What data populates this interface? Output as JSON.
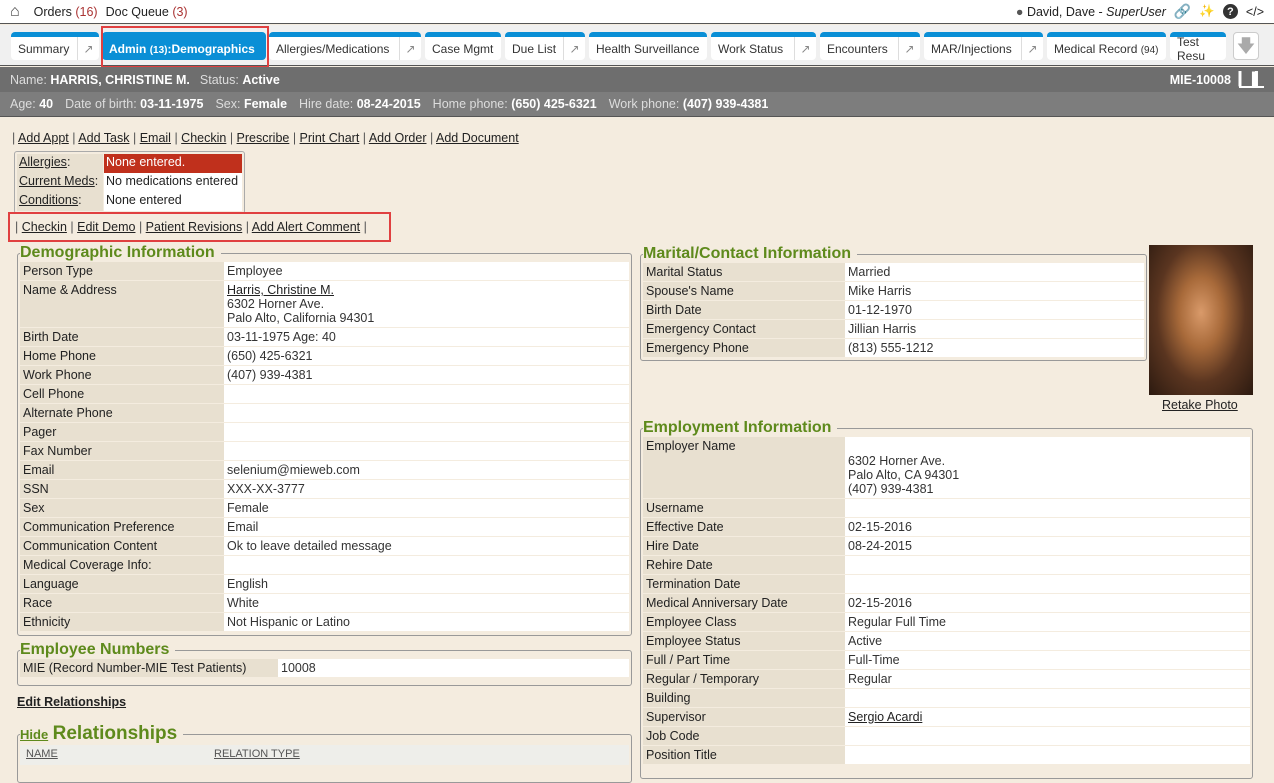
{
  "topbar": {
    "orders_label": "Orders",
    "orders_count": "(16)",
    "docq_label": "Doc Queue",
    "docq_count": "(3)",
    "user": "David, Dave",
    "role": "SuperUser",
    "sep": " - "
  },
  "tabs": [
    {
      "label": "Summary",
      "pop": true
    },
    {
      "label": "Admin",
      "count": "(13)",
      "suffix": ":Demographics",
      "active": true
    },
    {
      "label": "Allergies/Medications",
      "pop": true
    },
    {
      "label": "Case Mgmt"
    },
    {
      "label": "Due List",
      "pop": true
    },
    {
      "label": "Health Surveillance"
    },
    {
      "label": "Work Status",
      "pop": true
    },
    {
      "label": "Encounters",
      "pop": true
    },
    {
      "label": "MAR/Injections",
      "pop": true
    },
    {
      "label": "Medical Record",
      "count": "(94)"
    },
    {
      "label": "Test Resu"
    }
  ],
  "patient": {
    "name_label": "Name:",
    "name": "HARRIS, CHRISTINE M.",
    "status_label": "Status:",
    "status": "Active",
    "id": "MIE-10008",
    "info": [
      {
        "k": "Age:",
        "v": "40"
      },
      {
        "k": "Date of birth:",
        "v": "03-11-1975"
      },
      {
        "k": "Sex:",
        "v": "Female"
      },
      {
        "k": "Hire date:",
        "v": "08-24-2015"
      },
      {
        "k": "Home phone:",
        "v": "(650) 425-6321"
      },
      {
        "k": "Work phone:",
        "v": "(407) 939-4381"
      }
    ]
  },
  "actions": [
    "Add Appt",
    "Add Task",
    "Email",
    "Checkin",
    "Prescribe",
    "Print Chart",
    "Add Order",
    "Add Document"
  ],
  "alerts": [
    {
      "k": "Allergies",
      "v": "None entered.",
      "red": true
    },
    {
      "k": "Current Meds",
      "v": "No medications entered"
    },
    {
      "k": "Conditions",
      "v": "None entered"
    }
  ],
  "actions2": [
    "Checkin",
    "Edit Demo",
    "Patient Revisions",
    "Add Alert Comment"
  ],
  "demographic": {
    "title": "Demographic Information",
    "rows": [
      {
        "k": "Person Type",
        "v": "Employee"
      },
      {
        "k": "Name & Address",
        "v": "Harris, Christine M.",
        "v2": "6302 Horner Ave.",
        "v3": "Palo Alto, California 94301",
        "link": true
      },
      {
        "k": "Birth Date",
        "v": "03-11-1975 Age: 40"
      },
      {
        "k": "Home Phone",
        "v": "(650) 425-6321"
      },
      {
        "k": "Work Phone",
        "v": "(407) 939-4381"
      },
      {
        "k": "Cell Phone",
        "v": ""
      },
      {
        "k": "Alternate Phone",
        "v": ""
      },
      {
        "k": "Pager",
        "v": ""
      },
      {
        "k": "Fax Number",
        "v": ""
      },
      {
        "k": "Email",
        "v": "selenium@mieweb.com"
      },
      {
        "k": "SSN",
        "v": "XXX-XX-3777"
      },
      {
        "k": "Sex",
        "v": "Female"
      },
      {
        "k": "Communication Preference",
        "v": "Email"
      },
      {
        "k": "Communication Content",
        "v": "Ok to leave detailed message"
      },
      {
        "k": "Medical Coverage Info:",
        "v": ""
      },
      {
        "k": "Language",
        "v": "English"
      },
      {
        "k": "Race",
        "v": "White"
      },
      {
        "k": "Ethnicity",
        "v": "Not Hispanic or Latino"
      }
    ]
  },
  "employee_numbers": {
    "title": "Employee Numbers",
    "rows": [
      {
        "k": "MIE (Record Number-MIE Test Patients)",
        "v": "10008"
      }
    ]
  },
  "edit_relationships": "Edit Relationships",
  "relationships": {
    "hide": "Hide",
    "title": "Relationships",
    "columns": [
      "NAME",
      "RELATION TYPE"
    ]
  },
  "marital": {
    "title": "Marital/Contact Information",
    "rows": [
      {
        "k": "Marital Status",
        "v": "Married"
      },
      {
        "k": "Spouse's Name",
        "v": "Mike Harris"
      },
      {
        "k": "Birth Date",
        "v": "01-12-1970"
      },
      {
        "k": "Emergency Contact",
        "v": "Jillian Harris"
      },
      {
        "k": "Emergency Phone",
        "v": "(813) 555-1212"
      }
    ]
  },
  "retake_photo": "Retake Photo",
  "employment": {
    "title": "Employment Information",
    "rows": [
      {
        "k": "Employer Name",
        "v": "",
        "v2": "6302 Horner Ave.",
        "v3": "Palo Alto, CA 94301",
        "v4": "(407) 939-4381"
      },
      {
        "k": "Username",
        "v": ""
      },
      {
        "k": "Effective Date",
        "v": "02-15-2016"
      },
      {
        "k": "Hire Date",
        "v": "08-24-2015"
      },
      {
        "k": "Rehire Date",
        "v": ""
      },
      {
        "k": "Termination Date",
        "v": ""
      },
      {
        "k": "Medical Anniversary Date",
        "v": "02-15-2016"
      },
      {
        "k": "Employee Class",
        "v": "Regular Full Time"
      },
      {
        "k": "Employee Status",
        "v": "Active"
      },
      {
        "k": "Full / Part Time",
        "v": "Full-Time"
      },
      {
        "k": "Regular / Temporary",
        "v": "Regular"
      },
      {
        "k": "Building",
        "v": ""
      },
      {
        "k": "Supervisor",
        "v": "Sergio Acardi",
        "link": true
      },
      {
        "k": "Job Code",
        "v": ""
      },
      {
        "k": "Position Title",
        "v": ""
      }
    ]
  }
}
